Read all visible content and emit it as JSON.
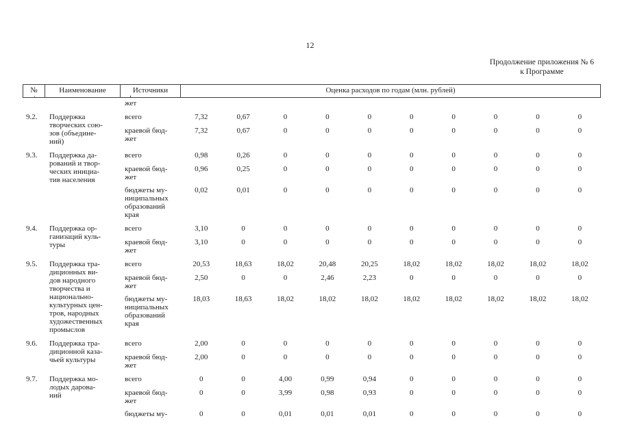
{
  "page_number": "12",
  "annex_note": {
    "line1": "Продолжение приложения № 6",
    "line2": "к Программе"
  },
  "table": {
    "header": {
      "col_num": "№\nп/п",
      "col_name": "Наименование\nосновного",
      "col_source": "Источники\nфинансирова-",
      "col_values": "Оценка расходов по годам (млн. рублей)"
    },
    "continuation_fragment": "жет",
    "items": [
      {
        "num": "9.2.",
        "name": "Поддержка\nтворческих сою-\nзов (объедине-\nний)",
        "subrows": [
          {
            "source": "всего",
            "values": [
              "7,32",
              "0,67",
              "0",
              "0",
              "0",
              "0",
              "0",
              "0",
              "0",
              "0"
            ]
          },
          {
            "source": "краевой бюд-\nжет",
            "values": [
              "7,32",
              "0,67",
              "0",
              "0",
              "0",
              "0",
              "0",
              "0",
              "0",
              "0"
            ]
          }
        ]
      },
      {
        "num": "9.3.",
        "name": "Поддержка да-\nрований и твор-\nческих инициа-\nтив населения",
        "subrows": [
          {
            "source": "всего",
            "values": [
              "0,98",
              "0,26",
              "0",
              "0",
              "0",
              "0",
              "0",
              "0",
              "0",
              "0"
            ]
          },
          {
            "source": "краевой бюд-\nжет",
            "values": [
              "0,96",
              "0,25",
              "0",
              "0",
              "0",
              "0",
              "0",
              "0",
              "0",
              "0"
            ]
          },
          {
            "source": "бюджеты му-\nниципальных\nобразований\nкрая",
            "values": [
              "0,02",
              "0,01",
              "0",
              "0",
              "0",
              "0",
              "0",
              "0",
              "0",
              "0"
            ]
          }
        ]
      },
      {
        "num": "9.4.",
        "name": "Поддержка ор-\nганизаций куль-\nтуры",
        "subrows": [
          {
            "source": "всего",
            "values": [
              "3,10",
              "0",
              "0",
              "0",
              "0",
              "0",
              "0",
              "0",
              "0",
              "0"
            ]
          },
          {
            "source": "краевой бюд-\nжет",
            "values": [
              "3,10",
              "0",
              "0",
              "0",
              "0",
              "0",
              "0",
              "0",
              "0",
              "0"
            ]
          }
        ]
      },
      {
        "num": "9.5.",
        "name": "Поддержка тра-\nдиционных ви-\nдов народного\nтворчества и\nнационально-\nкультурных цен-\nтров, народных\nхудожественных\nпромыслов",
        "subrows": [
          {
            "source": "всего",
            "values": [
              "20,53",
              "18,63",
              "18,02",
              "20,48",
              "20,25",
              "18,02",
              "18,02",
              "18,02",
              "18,02",
              "18,02"
            ]
          },
          {
            "source": "краевой бюд-\nжет",
            "values": [
              "2,50",
              "0",
              "0",
              "2,46",
              "2,23",
              "0",
              "0",
              "0",
              "0",
              "0"
            ]
          },
          {
            "source": "бюджеты му-\nниципальных\nобразований\nкрая",
            "values": [
              "18,03",
              "18,63",
              "18,02",
              "18,02",
              "18,02",
              "18,02",
              "18,02",
              "18,02",
              "18,02",
              "18,02"
            ]
          }
        ]
      },
      {
        "num": "9.6.",
        "name": "Поддержка тра-\nдиционной каза-\nчьей культуры",
        "subrows": [
          {
            "source": "всего",
            "values": [
              "2,00",
              "0",
              "0",
              "0",
              "0",
              "0",
              "0",
              "0",
              "0",
              "0"
            ]
          },
          {
            "source": "краевой бюд-\nжет",
            "values": [
              "2,00",
              "0",
              "0",
              "0",
              "0",
              "0",
              "0",
              "0",
              "0",
              "0"
            ]
          }
        ]
      },
      {
        "num": "9.7.",
        "name": "Поддержка мо-\nлодых дарова-\nний",
        "subrows": [
          {
            "source": "всего",
            "values": [
              "0",
              "0",
              "4,00",
              "0,99",
              "0,94",
              "0",
              "0",
              "0",
              "0",
              "0"
            ]
          },
          {
            "source": "краевой бюд-\nжет",
            "values": [
              "0",
              "0",
              "3,99",
              "0,98",
              "0,93",
              "0",
              "0",
              "0",
              "0",
              "0"
            ]
          },
          {
            "source": "бюджеты му-",
            "values": [
              "0",
              "0",
              "0,01",
              "0,01",
              "0,01",
              "0",
              "0",
              "0",
              "0",
              "0"
            ]
          }
        ]
      }
    ]
  }
}
